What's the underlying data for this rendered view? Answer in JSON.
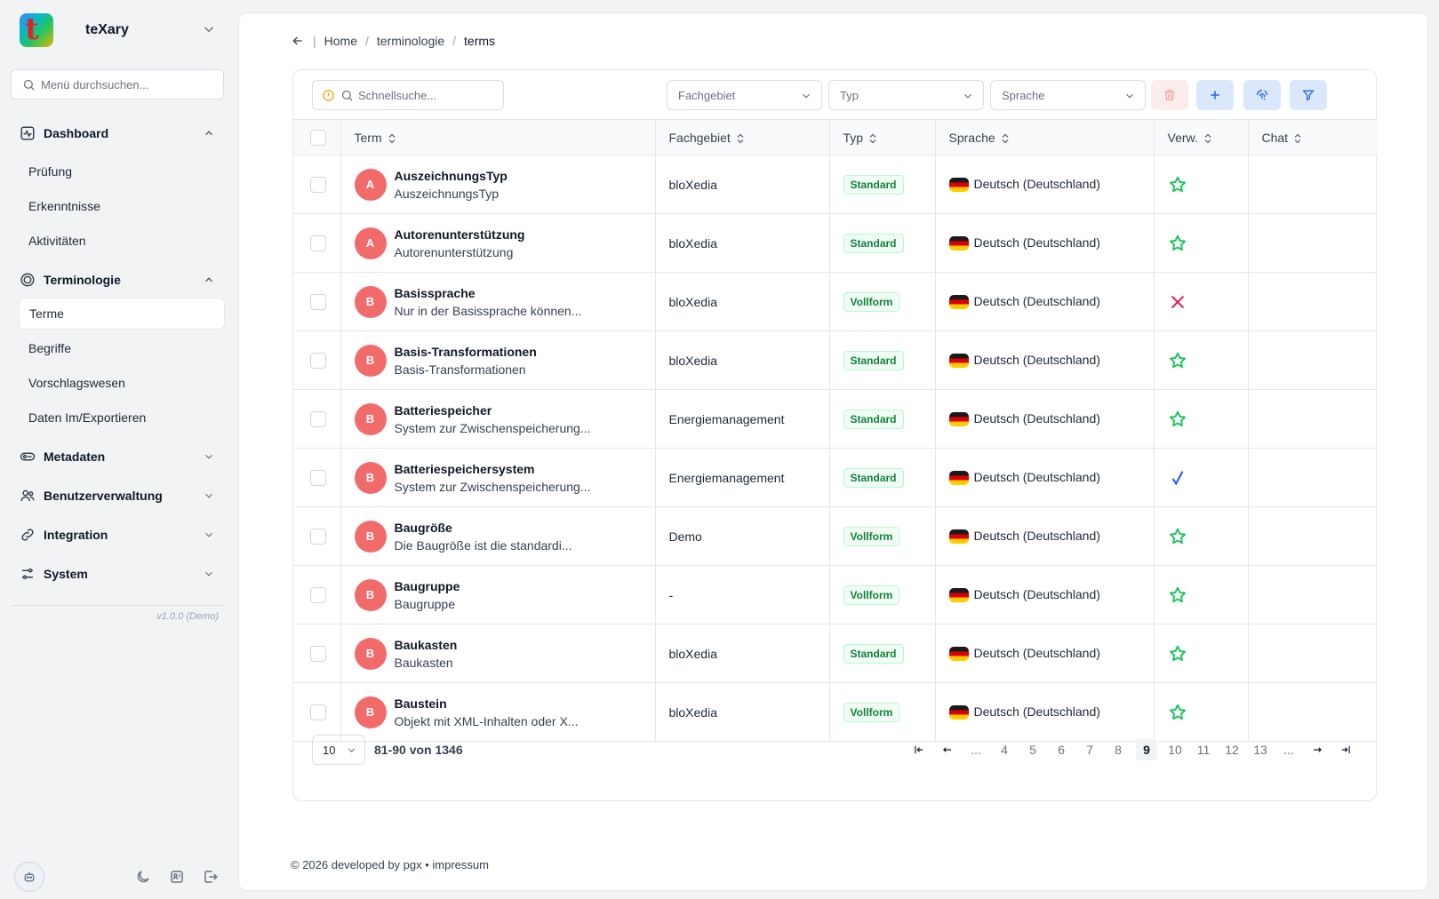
{
  "app": {
    "name": "teXary",
    "logo_letter": "t"
  },
  "sidebar": {
    "search_placeholder": "Menü durchsuchen...",
    "groups": [
      {
        "label": "Dashboard",
        "icon": "activity-icon",
        "expanded": true,
        "items": [
          "Prüfung",
          "Erkenntnisse",
          "Aktivitäten"
        ]
      },
      {
        "label": "Terminologie",
        "icon": "target-icon",
        "expanded": true,
        "items": [
          "Terme",
          "Begriffe",
          "Vorschlagswesen",
          "Daten Im/Exportieren"
        ],
        "active_item": "Terme"
      },
      {
        "label": "Metadaten",
        "icon": "tags-icon",
        "expanded": false
      },
      {
        "label": "Benutzerverwaltung",
        "icon": "users-icon",
        "expanded": false
      },
      {
        "label": "Integration",
        "icon": "link-icon",
        "expanded": false
      },
      {
        "label": "System",
        "icon": "sliders-icon",
        "expanded": false
      }
    ],
    "version": "v1.0.0 (Demo)",
    "bottom_icons": [
      "bot-avatar-icon",
      "moon-icon",
      "user-card-icon",
      "logout-icon"
    ]
  },
  "breadcrumb": [
    "Home",
    "terminologie",
    "terms"
  ],
  "toolbar": {
    "quick_search_placeholder": "Schnellsuche...",
    "filters": [
      "Fachgebiet",
      "Typ",
      "Sprache"
    ],
    "buttons": [
      "trash-icon",
      "plus-icon",
      "fingerprint-icon",
      "filter-icon"
    ]
  },
  "table": {
    "columns": [
      "Term",
      "Fachgebiet",
      "Typ",
      "Sprache",
      "Verw.",
      "Chat"
    ],
    "rows": [
      {
        "initial": "A",
        "title": "AuszeichnungsTyp",
        "desc": "AuszeichnungsTyp",
        "fachgebiet": "bloXedia",
        "typ": "Standard",
        "sprache": "Deutsch (Deutschland)",
        "verw": "star"
      },
      {
        "initial": "A",
        "title": "Autorenunterstützung",
        "desc": "Autorenunterstützung",
        "fachgebiet": "bloXedia",
        "typ": "Standard",
        "sprache": "Deutsch (Deutschland)",
        "verw": "star"
      },
      {
        "initial": "B",
        "title": "Basissprache",
        "desc": "Nur in der Basissprache können...",
        "fachgebiet": "bloXedia",
        "typ": "Vollform",
        "sprache": "Deutsch (Deutschland)",
        "verw": "cross"
      },
      {
        "initial": "B",
        "title": "Basis-Transformationen",
        "desc": "Basis-Transformationen",
        "fachgebiet": "bloXedia",
        "typ": "Standard",
        "sprache": "Deutsch (Deutschland)",
        "verw": "star"
      },
      {
        "initial": "B",
        "title": "Batteriespeicher",
        "desc": "System zur Zwischenspeicherung...",
        "fachgebiet": "Energiemanagement",
        "typ": "Standard",
        "sprache": "Deutsch (Deutschland)",
        "verw": "star"
      },
      {
        "initial": "B",
        "title": "Batteriespeichersystem",
        "desc": "System zur Zwischenspeicherung...",
        "fachgebiet": "Energiemanagement",
        "typ": "Standard",
        "sprache": "Deutsch (Deutschland)",
        "verw": "check"
      },
      {
        "initial": "B",
        "title": "Baugröße",
        "desc": "Die Baugröße ist die standardi...",
        "fachgebiet": "Demo",
        "typ": "Vollform",
        "sprache": "Deutsch (Deutschland)",
        "verw": "star"
      },
      {
        "initial": "B",
        "title": "Baugruppe",
        "desc": "Baugruppe",
        "fachgebiet": "-",
        "typ": "Vollform",
        "sprache": "Deutsch (Deutschland)",
        "verw": "star"
      },
      {
        "initial": "B",
        "title": "Baukasten",
        "desc": "Baukasten",
        "fachgebiet": "bloXedia",
        "typ": "Standard",
        "sprache": "Deutsch (Deutschland)",
        "verw": "star"
      },
      {
        "initial": "B",
        "title": "Baustein",
        "desc": "Objekt mit XML-Inhalten oder X...",
        "fachgebiet": "bloXedia",
        "typ": "Vollform",
        "sprache": "Deutsch (Deutschland)",
        "verw": "star"
      }
    ]
  },
  "pagination": {
    "page_size": "10",
    "range": "81-90 von 1346",
    "pages": [
      "...",
      "4",
      "5",
      "6",
      "7",
      "8",
      "9",
      "10",
      "11",
      "12",
      "13",
      "..."
    ],
    "current": "9"
  },
  "footer": "© 2026 developed by pgx • impressum",
  "colors": {
    "avatar": "#f26b6b",
    "star": "#22c55e",
    "cross": "#e11d48",
    "check": "#2563eb",
    "badge_text": "#15803d",
    "accent_button": "#e0edff"
  }
}
